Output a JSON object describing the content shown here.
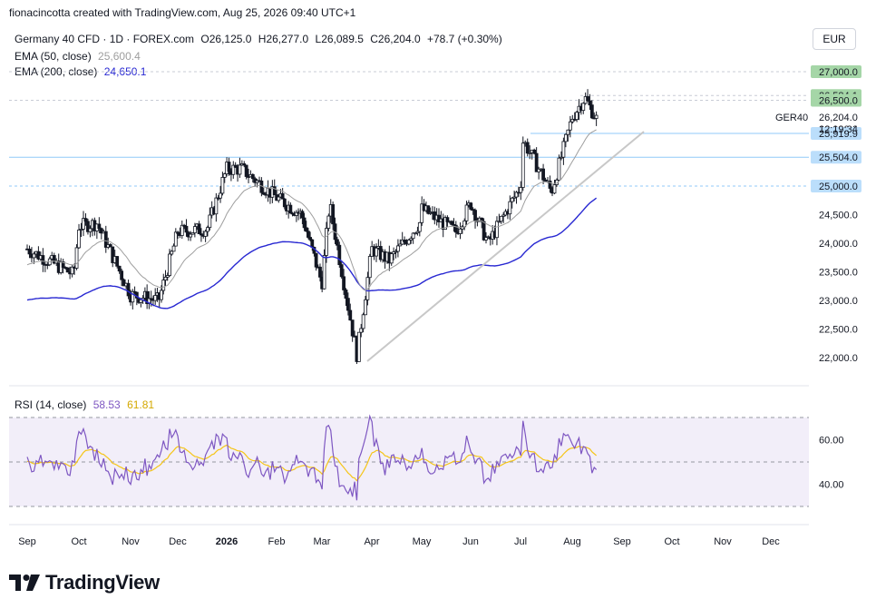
{
  "header": {
    "credit": "fionacincotta created with TradingView.com, Aug 25, 2026 09:40 UTC+1",
    "symbol_line": "Germany 40 CFD · 1D · FOREX.com",
    "ohlc": {
      "open": "O26,125.0",
      "high": "H26,277.0",
      "low": "L26,089.5",
      "close": "C26,204.0",
      "change": "+78.7 (+0.30%)"
    },
    "ema50_label": "EMA (50, close)",
    "ema50_value": "25,600.4",
    "ema200_label": "EMA (200, close)",
    "ema200_value": "24,650.1",
    "currency": "EUR"
  },
  "rsi_legend": {
    "label": "RSI (14, close)",
    "value": "58.53",
    "ma_value": "61.81"
  },
  "price_tags": [
    {
      "value": "27,000.0",
      "price": 27000,
      "bg": "#a5d6a7"
    },
    {
      "value": "26,584.1",
      "price": 26584.1,
      "bg": "#a5d6a7"
    },
    {
      "value": "26,500.0",
      "price": 26500,
      "bg": "#a5d6a7"
    },
    {
      "value": "25,919.9",
      "price": 25919.9,
      "bg": "#bbdefb"
    },
    {
      "value": "25,504.0",
      "price": 25504,
      "bg": "#bbdefb"
    },
    {
      "value": "25,000.0",
      "price": 25000,
      "bg": "#bbdefb"
    }
  ],
  "last_price": {
    "ticker": "GER40",
    "value": "26,204.0",
    "countdown": "12:19:34"
  },
  "brand": "TradingView",
  "colors": {
    "ema50": "#9e9e9e",
    "ema200": "#2828d2",
    "rsi": "#7e57c2",
    "rsi_ma": "#f5c518",
    "up": "#131722",
    "down": "#131722",
    "trendline": "#c8c8c8",
    "level": "#90caf9"
  },
  "chart_data": {
    "type": "candlestick",
    "title": "Germany 40 CFD · 1D · FOREX.com",
    "x_axis_labels": [
      "Sep",
      "Oct",
      "Nov",
      "Dec",
      "2026",
      "Feb",
      "Mar",
      "Apr",
      "May",
      "Jun",
      "Jul",
      "Aug",
      "Sep",
      "Oct",
      "Nov",
      "Dec"
    ],
    "y_axis_labels": [
      "27,000.0",
      "26,500.0",
      "26,000.0",
      "25,500.0",
      "25,000.0",
      "24,500.0",
      "24,000.0",
      "23,500.0",
      "23,000.0",
      "22,500.0",
      "22,000.0"
    ],
    "ylim": [
      21900,
      27300
    ],
    "horizontal_levels": [
      27000,
      26584.1,
      26500,
      25919.9,
      25504,
      25000
    ],
    "trendline": {
      "from": {
        "date": "2026-03-24",
        "value": 21900
      },
      "to": {
        "date": "2026-09-01",
        "value": 26000
      }
    },
    "close_path": [
      {
        "month": "Sep",
        "close": 23900
      },
      {
        "month": "Oct",
        "close": 24300
      },
      {
        "month": "Nov",
        "close": 23100
      },
      {
        "month": "Dec",
        "close": 24200
      },
      {
        "month": "2026",
        "close": 25300
      },
      {
        "month": "Feb",
        "close": 24800
      },
      {
        "month": "Mar",
        "close": 23300
      },
      {
        "month": "Apr",
        "close": 23900
      },
      {
        "month": "May",
        "close": 24400
      },
      {
        "month": "Jun",
        "close": 24700
      },
      {
        "month": "Jul",
        "close": 25000
      },
      {
        "month": "Aug",
        "close": 26200
      }
    ],
    "rsi": {
      "levels": [
        70,
        50,
        30
      ],
      "y_axis_labels": [
        "60.00",
        "40.00"
      ],
      "last": 58.53,
      "ma_last": 61.81
    }
  }
}
